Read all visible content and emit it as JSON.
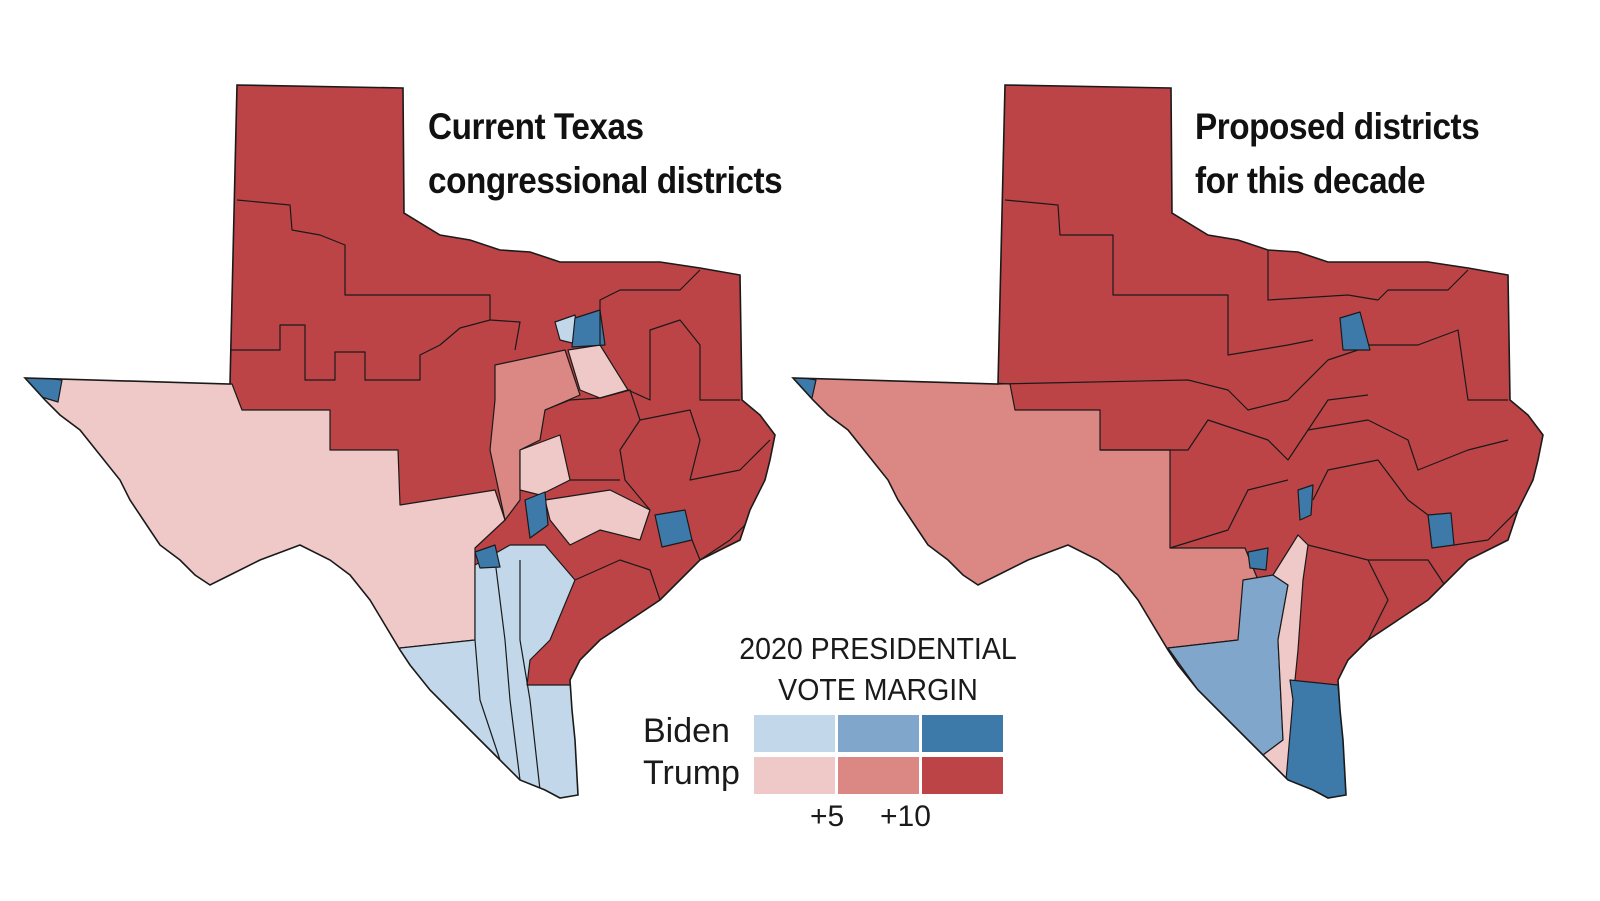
{
  "maps": [
    {
      "title_line1": "Current Texas",
      "title_line2": "congressional districts"
    },
    {
      "title_line1": "Proposed districts",
      "title_line2": "for this decade"
    }
  ],
  "legend": {
    "title_line1": "2020 PRESIDENTIAL",
    "title_line2": "VOTE MARGIN",
    "rows": [
      {
        "label": "Biden",
        "colors": [
          "#c2d7ea",
          "#80a6cb",
          "#3d7aaa"
        ]
      },
      {
        "label": "Trump",
        "colors": [
          "#efc8c8",
          "#db8885",
          "#bc4447"
        ]
      }
    ],
    "ticks": [
      "+5",
      "+10"
    ]
  },
  "colors": {
    "outline": "#1a1a1a"
  }
}
